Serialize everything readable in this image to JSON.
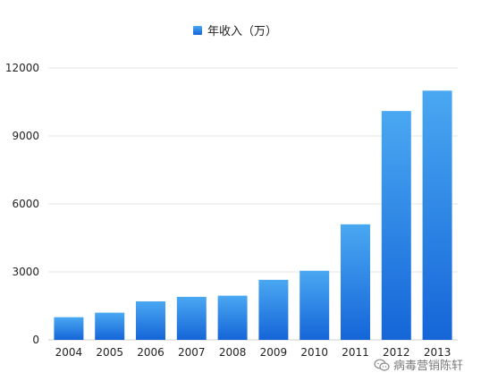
{
  "chart_data": {
    "type": "bar",
    "title": "",
    "xlabel": "",
    "ylabel": "",
    "categories": [
      "2004",
      "2005",
      "2006",
      "2007",
      "2008",
      "2009",
      "2010",
      "2011",
      "2012",
      "2013"
    ],
    "series": [
      {
        "name": "年收入（万）",
        "values": [
          1000,
          1200,
          1700,
          1900,
          1950,
          2650,
          3050,
          5100,
          10100,
          11000
        ]
      }
    ],
    "y_ticks": [
      "0",
      "3000",
      "6000",
      "9000",
      "12000"
    ],
    "ylim": [
      0,
      12000
    ],
    "grid": true,
    "legend": "top-center",
    "colors": {
      "bar_top": "#4aa8f2",
      "bar_bottom": "#1565d8",
      "grid": "#e6e6e6",
      "axis": "#cfcfcf"
    }
  },
  "watermark": {
    "text": "病毒营销陈轩",
    "icon": "wechat-icon"
  }
}
